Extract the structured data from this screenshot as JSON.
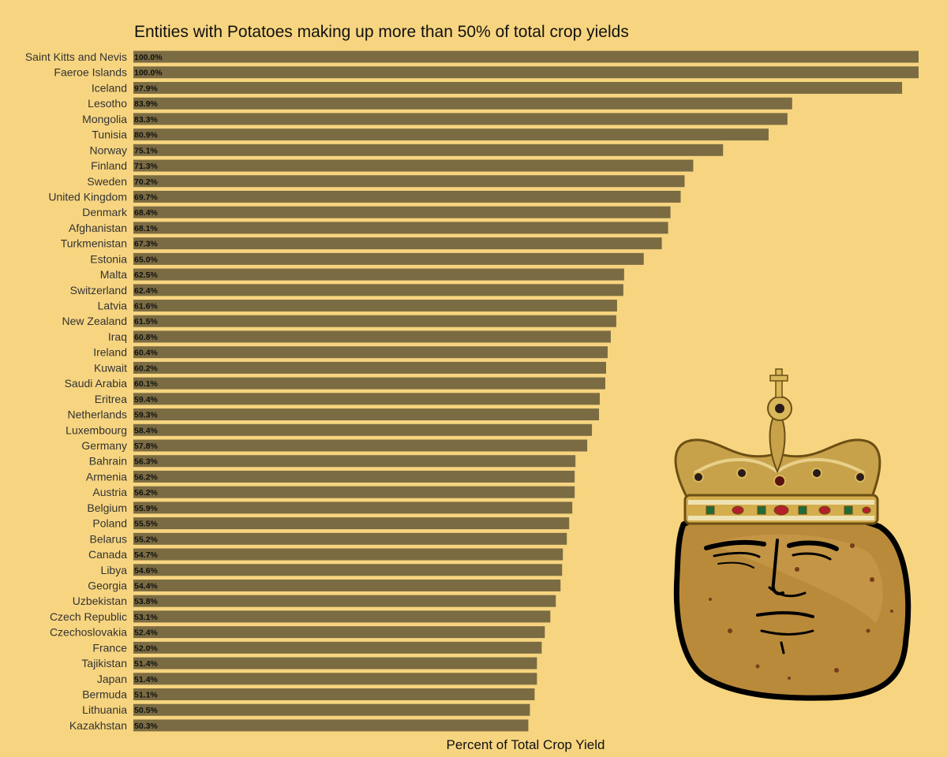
{
  "chart_data": {
    "type": "bar",
    "orientation": "horizontal",
    "title": "Entities with Potatoes making up more than 50% of total crop yields",
    "xlabel": "Percent of Total Crop Yield",
    "ylabel": "",
    "xlim": [
      0,
      100
    ],
    "grid": false,
    "legend": false,
    "bar_color": "#7a6b42",
    "background_color": "#f7d580",
    "decoration": "crowned-potato-cartoon",
    "categories": [
      "Saint Kitts and Nevis",
      "Faeroe Islands",
      "Iceland",
      "Lesotho",
      "Mongolia",
      "Tunisia",
      "Norway",
      "Finland",
      "Sweden",
      "United Kingdom",
      "Denmark",
      "Afghanistan",
      "Turkmenistan",
      "Estonia",
      "Malta",
      "Switzerland",
      "Latvia",
      "New Zealand",
      "Iraq",
      "Ireland",
      "Kuwait",
      "Saudi Arabia",
      "Eritrea",
      "Netherlands",
      "Luxembourg",
      "Germany",
      "Bahrain",
      "Armenia",
      "Austria",
      "Belgium",
      "Poland",
      "Belarus",
      "Canada",
      "Libya",
      "Georgia",
      "Uzbekistan",
      "Czech Republic",
      "Czechoslovakia",
      "France",
      "Tajikistan",
      "Japan",
      "Bermuda",
      "Lithuania",
      "Kazakhstan"
    ],
    "values": [
      100.0,
      100.0,
      97.9,
      83.9,
      83.3,
      80.9,
      75.1,
      71.3,
      70.2,
      69.7,
      68.4,
      68.1,
      67.3,
      65.0,
      62.5,
      62.4,
      61.6,
      61.5,
      60.8,
      60.4,
      60.2,
      60.1,
      59.4,
      59.3,
      58.4,
      57.8,
      56.3,
      56.2,
      56.2,
      55.9,
      55.5,
      55.2,
      54.7,
      54.6,
      54.4,
      53.8,
      53.1,
      52.4,
      52.0,
      51.4,
      51.4,
      51.1,
      50.5,
      50.3
    ],
    "labels": [
      "100.0%",
      "100.0%",
      "97.9%",
      "83.9%",
      "83.3%",
      "80.9%",
      "75.1%",
      "71.3%",
      "70.2%",
      "69.7%",
      "68.4%",
      "68.1%",
      "67.3%",
      "65.0%",
      "62.5%",
      "62.4%",
      "61.6%",
      "61.5%",
      "60.8%",
      "60.4%",
      "60.2%",
      "60.1%",
      "59.4%",
      "59.3%",
      "58.4%",
      "57.8%",
      "56.3%",
      "56.2%",
      "56.2%",
      "55.9%",
      "55.5%",
      "55.2%",
      "54.7%",
      "54.6%",
      "54.4%",
      "53.8%",
      "53.1%",
      "52.4%",
      "52.0%",
      "51.4%",
      "51.4%",
      "51.1%",
      "50.5%",
      "50.3%"
    ]
  }
}
